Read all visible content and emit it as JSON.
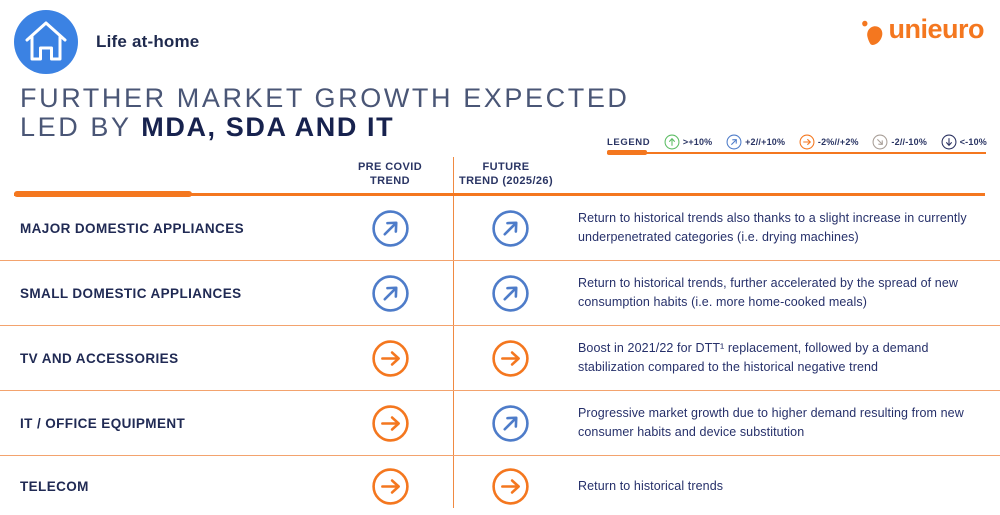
{
  "page": {
    "badge_label": "Life at-home",
    "logo_text": "unieuro",
    "title_line1": "FURTHER MARKET GROWTH EXPECTED",
    "title_line2_prefix": "LED BY ",
    "title_line2_emphasis": "MDA, SDA AND IT"
  },
  "colors": {
    "brand_orange": "#F4771F",
    "separator_orange": "#F3A36E",
    "badge_blue": "#3B82E3",
    "text_navy": "#1F2A56"
  },
  "trend_colors": {
    "up": "#5CBD64",
    "up-right": "#4E7CC9",
    "right": "#F4771F",
    "down-right": "#A89E97",
    "down": "#2A3160"
  },
  "legend": {
    "label": "LEGEND",
    "items": [
      {
        "trend": "up",
        "color": "#5CBD64",
        "label": ">+10%"
      },
      {
        "trend": "up-right",
        "color": "#4E7CC9",
        "label": "+2//+10%"
      },
      {
        "trend": "right",
        "color": "#F4771F",
        "label": "-2%//+2%"
      },
      {
        "trend": "down-right",
        "color": "#A89E97",
        "label": "-2//-10%"
      },
      {
        "trend": "down",
        "color": "#2A3160",
        "label": "<-10%"
      }
    ]
  },
  "table": {
    "col_pre_line1": "PRE COVID",
    "col_pre_line2": "TREND",
    "col_future_line1": "FUTURE",
    "col_future_line2": "TREND (2025/26)",
    "rows": [
      {
        "category": "MAJOR DOMESTIC APPLIANCES",
        "pre_covid": "up-right",
        "future": "up-right",
        "description": "Return to historical trends also thanks to a slight increase in currently underpenetrated categories (i.e. drying machines)"
      },
      {
        "category": "SMALL DOMESTIC APPLIANCES",
        "pre_covid": "up-right",
        "future": "up-right",
        "description": "Return to historical trends, further accelerated by the spread of new consumption habits (i.e. more home-cooked meals)"
      },
      {
        "category": "TV AND ACCESSORIES",
        "pre_covid": "right",
        "future": "right",
        "description": "Boost in 2021/22 for DTT¹ replacement, followed by a demand stabilization compared to the historical negative trend"
      },
      {
        "category": "IT / OFFICE EQUIPMENT",
        "pre_covid": "right",
        "future": "up-right",
        "description": "Progressive market growth due to higher demand resulting from new  consumer habits and device substitution"
      },
      {
        "category": "TELECOM",
        "pre_covid": "right",
        "future": "right",
        "description": "Return to historical trends"
      }
    ]
  }
}
